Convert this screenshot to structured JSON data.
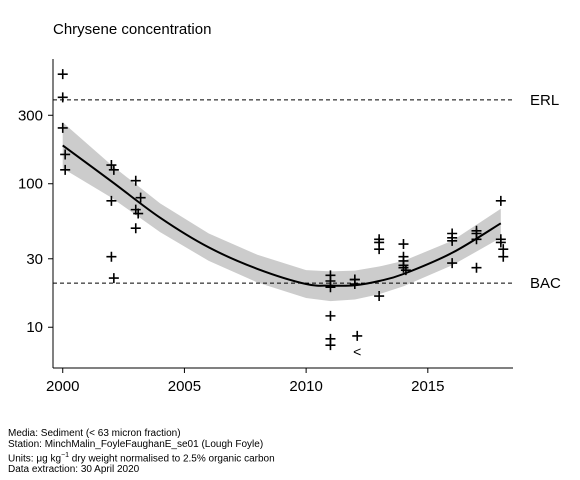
{
  "chart_data": {
    "type": "scatter",
    "title": "Chrysene concentration",
    "xlabel": "",
    "ylabel": "",
    "y_scale": "log",
    "xlim": [
      1999.6,
      2018.5
    ],
    "ylim": [
      5.2,
      740
    ],
    "x_ticks": [
      2000,
      2005,
      2010,
      2015
    ],
    "y_ticks": [
      10,
      30,
      100,
      300
    ],
    "grid": false,
    "reference_lines": [
      {
        "label": "ERL",
        "value": 384
      },
      {
        "label": "BAC",
        "value": 20.3
      }
    ],
    "series": [
      {
        "type": "scatter",
        "x": [
          2000,
          2000,
          2000,
          2000.1,
          2000.1,
          2002,
          2002.1,
          2002,
          2002,
          2002.1,
          2003,
          2003,
          2003.1,
          2003.2,
          2003,
          2011,
          2011,
          2011,
          2011,
          2011,
          2011,
          2012,
          2012,
          2012,
          2012.1,
          2013,
          2013,
          2013,
          2013,
          2014,
          2014,
          2014,
          2014,
          2014,
          2014.1,
          2016,
          2016,
          2016,
          2016,
          2017,
          2017,
          2017,
          2017,
          2018,
          2018,
          2018,
          2018.1,
          2018.1
        ],
        "y": [
          580,
          400,
          245,
          160,
          125,
          135,
          125,
          76,
          31,
          22,
          105,
          66,
          62,
          80,
          49,
          23,
          21,
          19,
          12,
          7.5,
          8.3,
          21.5,
          21.5,
          20,
          8.7,
          41,
          39,
          35,
          16.5,
          38,
          31,
          29,
          27,
          26,
          25,
          45,
          42,
          40,
          28,
          47,
          45,
          41,
          26,
          76,
          41,
          39,
          35,
          31
        ]
      },
      {
        "type": "censored",
        "marker": "<",
        "x": [
          2012.1
        ],
        "y": [
          6.8
        ]
      },
      {
        "type": "line",
        "x": [
          2000,
          2002,
          2004,
          2006,
          2008,
          2010,
          2011,
          2012,
          2013,
          2014,
          2016,
          2018
        ],
        "y": [
          185,
          104,
          58,
          36,
          25.5,
          20,
          19.5,
          19.6,
          21,
          23.5,
          33,
          53
        ]
      },
      {
        "type": "band",
        "x": [
          2000,
          2002,
          2004,
          2006,
          2008,
          2010,
          2011,
          2012,
          2013,
          2014,
          2016,
          2018
        ],
        "lower": [
          128,
          80,
          46,
          29,
          20.5,
          16,
          15.2,
          15.6,
          17,
          19.3,
          27,
          42
        ],
        "upper": [
          268,
          135,
          73,
          45,
          32,
          25,
          24.5,
          24.8,
          26.5,
          29,
          40,
          67
        ]
      }
    ]
  },
  "footer": {
    "media": "Media: Sediment (< 63 micron fraction)",
    "station": "Station: MinchMalin_FoyleFaughanE_se01 (Lough Foyle)",
    "units_prefix": "Units:  μg kg",
    "units_exp": "−1",
    "units_suffix": " dry weight normalised to 2.5% organic carbon",
    "extraction": "Data extraction: 30 April 2020"
  }
}
